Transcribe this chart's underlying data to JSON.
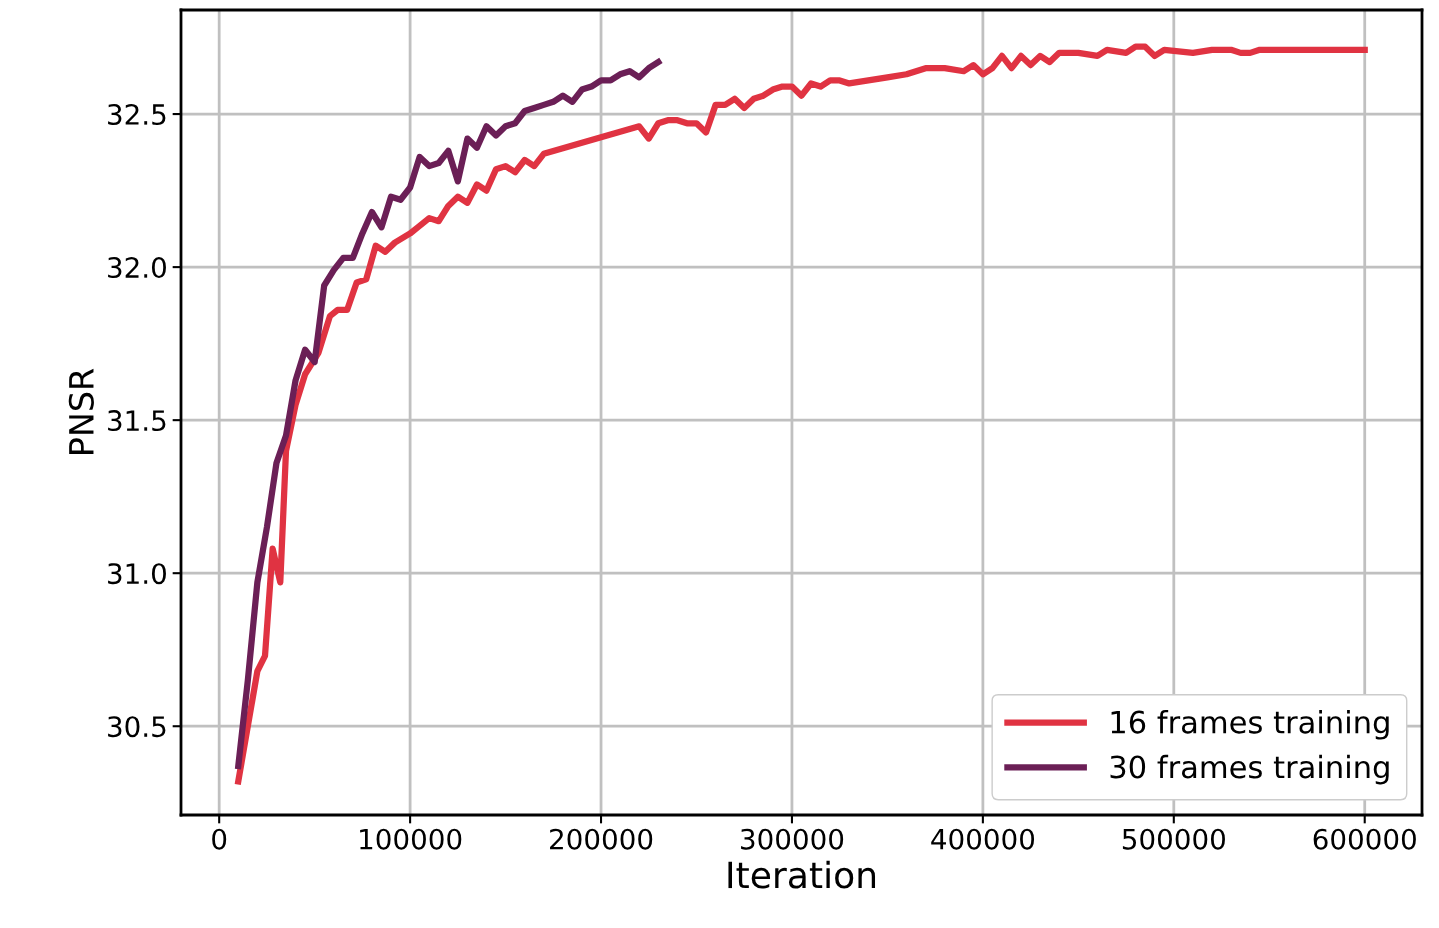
{
  "chart_data": {
    "type": "line",
    "xlabel": "Iteration",
    "ylabel": "PNSR",
    "xlim": [
      -20000,
      630000
    ],
    "xticks": [
      0,
      100000,
      200000,
      300000,
      400000,
      500000,
      600000
    ],
    "ylim": [
      30.21,
      32.84
    ],
    "yticks": [
      {
        "value": 30.5,
        "label": "30.5"
      },
      {
        "value": 31.0,
        "label": "31.0"
      },
      {
        "value": 31.5,
        "label": "31.5"
      },
      {
        "value": 32.0,
        "label": "32.0"
      },
      {
        "value": 32.5,
        "label": "32.5"
      }
    ],
    "grid": true,
    "legend": "bottom right",
    "marker": "none",
    "line_style": "solid",
    "series": [
      {
        "name": "16 frames training",
        "color": "#e03342",
        "x": [
          10000,
          20000,
          24000,
          28000,
          32000,
          35000,
          40000,
          45000,
          52000,
          58000,
          62000,
          67000,
          72000,
          77000,
          82000,
          87000,
          92000,
          100000,
          104000,
          110000,
          115000,
          120000,
          125000,
          130000,
          135000,
          140000,
          145000,
          150000,
          155000,
          160000,
          165000,
          170000,
          220000,
          225000,
          230000,
          235000,
          240000,
          245000,
          250000,
          255000,
          260000,
          265000,
          270000,
          275000,
          280000,
          285000,
          290000,
          295000,
          300000,
          305000,
          310000,
          315000,
          320000,
          325000,
          330000,
          340000,
          350000,
          360000,
          365000,
          370000,
          380000,
          390000,
          395000,
          400000,
          405000,
          410000,
          415000,
          420000,
          425000,
          430000,
          435000,
          440000,
          450000,
          460000,
          465000,
          475000,
          480000,
          485000,
          490000,
          495000,
          510000,
          520000,
          530000,
          535000,
          540000,
          545000,
          560000,
          580000,
          600000
        ],
        "values": [
          30.32,
          30.68,
          30.73,
          31.08,
          30.97,
          31.4,
          31.55,
          31.65,
          31.72,
          31.84,
          31.86,
          31.86,
          31.95,
          31.96,
          32.07,
          32.05,
          32.08,
          32.11,
          32.13,
          32.16,
          32.15,
          32.2,
          32.23,
          32.21,
          32.27,
          32.25,
          32.32,
          32.33,
          32.31,
          32.35,
          32.33,
          32.37,
          32.46,
          32.42,
          32.47,
          32.48,
          32.48,
          32.47,
          32.47,
          32.44,
          32.53,
          32.53,
          32.55,
          32.52,
          32.55,
          32.56,
          32.58,
          32.59,
          32.59,
          32.56,
          32.6,
          32.59,
          32.61,
          32.61,
          32.6,
          32.61,
          32.62,
          32.63,
          32.64,
          32.65,
          32.65,
          32.64,
          32.66,
          32.63,
          32.65,
          32.69,
          32.65,
          32.69,
          32.66,
          32.69,
          32.67,
          32.7,
          32.7,
          32.69,
          32.71,
          32.7,
          32.72,
          32.72,
          32.69,
          32.71,
          32.7,
          32.71,
          32.71,
          32.7,
          32.7,
          32.71,
          32.71,
          32.71,
          32.71
        ]
      },
      {
        "name": "30 frames training",
        "color": "#6b1f56",
        "x": [
          10000,
          15000,
          20000,
          25000,
          30000,
          35000,
          40000,
          45000,
          50000,
          55000,
          60000,
          65000,
          70000,
          75000,
          80000,
          85000,
          90000,
          95000,
          100000,
          105000,
          110000,
          115000,
          120000,
          125000,
          130000,
          135000,
          140000,
          145000,
          150000,
          155000,
          160000,
          165000,
          170000,
          175000,
          180000,
          185000,
          190000,
          195000,
          200000,
          205000,
          210000,
          215000,
          220000,
          225000,
          230000
        ],
        "values": [
          30.37,
          30.65,
          30.97,
          31.15,
          31.36,
          31.45,
          31.63,
          31.73,
          31.69,
          31.94,
          31.99,
          32.03,
          32.03,
          32.11,
          32.18,
          32.13,
          32.23,
          32.22,
          32.26,
          32.36,
          32.33,
          32.34,
          32.38,
          32.28,
          32.42,
          32.39,
          32.46,
          32.43,
          32.46,
          32.47,
          32.51,
          32.52,
          32.53,
          32.54,
          32.56,
          32.54,
          32.58,
          32.59,
          32.61,
          32.61,
          32.63,
          32.64,
          32.62,
          32.65,
          32.67
        ]
      }
    ]
  }
}
